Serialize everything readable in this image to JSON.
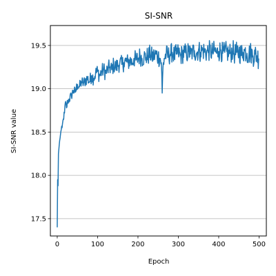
{
  "chart_data": {
    "type": "line",
    "title": "SI-SNR",
    "xlabel": "Epoch",
    "ylabel": "SI-SNR value",
    "xlim": [
      -17,
      518
    ],
    "ylim": [
      17.3,
      19.73
    ],
    "x_ticks": [
      0,
      100,
      200,
      300,
      400,
      500
    ],
    "x_tick_labels": [
      "0",
      "100",
      "200",
      "300",
      "400",
      "500"
    ],
    "y_ticks": [
      17.5,
      18.0,
      18.5,
      19.0,
      19.5
    ],
    "y_tick_labels": [
      "17.5",
      "18.0",
      "18.5",
      "19.0",
      "19.5"
    ],
    "grid": "horizontal",
    "line_color": "#1f77b4",
    "series": [
      {
        "name": "",
        "x_start": 0,
        "x_end": 499,
        "points": [
          [
            0,
            17.4
          ],
          [
            1,
            17.95
          ],
          [
            2,
            17.88
          ],
          [
            3,
            18.25
          ],
          [
            4,
            18.3
          ],
          [
            6,
            18.4
          ],
          [
            8,
            18.47
          ],
          [
            10,
            18.53
          ],
          [
            12,
            18.55
          ],
          [
            15,
            18.65
          ],
          [
            18,
            18.72
          ],
          [
            20,
            18.84
          ],
          [
            23,
            18.78
          ],
          [
            26,
            18.86
          ],
          [
            30,
            18.88
          ],
          [
            35,
            18.92
          ],
          [
            40,
            18.98
          ],
          [
            45,
            18.96
          ],
          [
            50,
            19.05
          ],
          [
            55,
            19.02
          ],
          [
            60,
            19.08
          ],
          [
            65,
            19.06
          ],
          [
            70,
            19.1
          ],
          [
            75,
            19.12
          ],
          [
            80,
            19.08
          ],
          [
            85,
            19.15
          ],
          [
            90,
            19.12
          ],
          [
            95,
            19.18
          ],
          [
            100,
            19.2
          ],
          [
            105,
            19.15
          ],
          [
            110,
            19.2
          ],
          [
            115,
            19.22
          ],
          [
            120,
            19.18
          ],
          [
            125,
            19.22
          ],
          [
            130,
            19.25
          ],
          [
            135,
            19.22
          ],
          [
            140,
            19.28
          ],
          [
            145,
            19.25
          ],
          [
            150,
            19.27
          ],
          [
            155,
            19.3
          ],
          [
            160,
            19.28
          ],
          [
            165,
            19.3
          ],
          [
            170,
            19.32
          ],
          [
            175,
            19.3
          ],
          [
            180,
            19.33
          ],
          [
            185,
            19.3
          ],
          [
            190,
            19.35
          ],
          [
            195,
            19.33
          ],
          [
            200,
            19.35
          ],
          [
            205,
            19.38
          ],
          [
            210,
            19.35
          ],
          [
            215,
            19.37
          ],
          [
            220,
            19.36
          ],
          [
            225,
            19.38
          ],
          [
            230,
            19.4
          ],
          [
            235,
            19.37
          ],
          [
            240,
            19.38
          ],
          [
            245,
            19.4
          ],
          [
            250,
            19.37
          ],
          [
            255,
            19.35
          ],
          [
            258,
            19.3
          ],
          [
            260,
            18.95
          ],
          [
            262,
            19.25
          ],
          [
            265,
            19.35
          ],
          [
            270,
            19.4
          ],
          [
            275,
            19.38
          ],
          [
            280,
            19.4
          ],
          [
            285,
            19.42
          ],
          [
            290,
            19.38
          ],
          [
            295,
            19.4
          ],
          [
            300,
            19.42
          ],
          [
            305,
            19.38
          ],
          [
            310,
            19.4
          ],
          [
            315,
            19.42
          ],
          [
            320,
            19.4
          ],
          [
            325,
            19.43
          ],
          [
            330,
            19.4
          ],
          [
            335,
            19.42
          ],
          [
            340,
            19.44
          ],
          [
            345,
            19.41
          ],
          [
            350,
            19.45
          ],
          [
            355,
            19.42
          ],
          [
            360,
            19.45
          ],
          [
            365,
            19.43
          ],
          [
            370,
            19.42
          ],
          [
            375,
            19.44
          ],
          [
            380,
            19.43
          ],
          [
            385,
            19.42
          ],
          [
            390,
            19.44
          ],
          [
            395,
            19.41
          ],
          [
            400,
            19.43
          ],
          [
            405,
            19.45
          ],
          [
            410,
            19.41
          ],
          [
            415,
            19.42
          ],
          [
            420,
            19.43
          ],
          [
            425,
            19.4
          ],
          [
            430,
            19.42
          ],
          [
            435,
            19.44
          ],
          [
            440,
            19.4
          ],
          [
            445,
            19.42
          ],
          [
            450,
            19.43
          ],
          [
            455,
            19.4
          ],
          [
            460,
            19.42
          ],
          [
            465,
            19.44
          ],
          [
            470,
            19.41
          ],
          [
            475,
            19.4
          ],
          [
            480,
            19.42
          ],
          [
            485,
            19.38
          ],
          [
            490,
            19.4
          ],
          [
            495,
            19.38
          ],
          [
            499,
            19.35
          ]
        ],
        "noise_amplitude": [
          [
            0,
            0.0
          ],
          [
            20,
            0.05
          ],
          [
            100,
            0.09
          ],
          [
            200,
            0.11
          ],
          [
            499,
            0.13
          ]
        ]
      }
    ]
  }
}
